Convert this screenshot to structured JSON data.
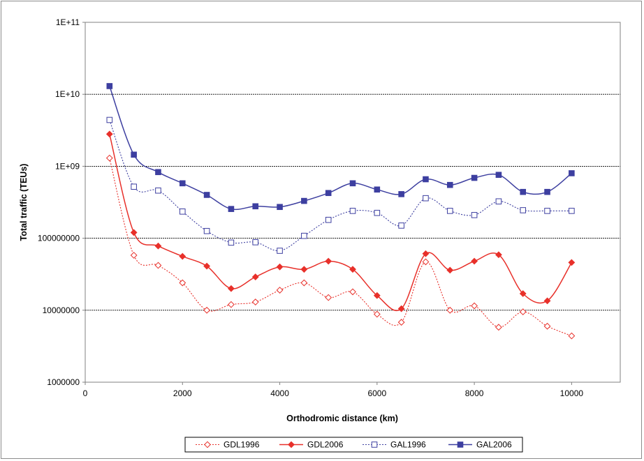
{
  "chart_data": {
    "type": "line",
    "xlabel": "Orthodromic distance (km)",
    "ylabel": "Total traffic (TEUs)",
    "xlim": [
      0,
      11000
    ],
    "ylim": [
      1000000,
      100000000000
    ],
    "y_scale": "log",
    "grid": "horizontal",
    "legend_position": "bottom",
    "x_ticks": [
      "0",
      "2000",
      "4000",
      "6000",
      "8000",
      "10000"
    ],
    "y_ticks": [
      "1000000",
      "10000000",
      "100000000",
      "1E+09",
      "1E+10",
      "1E+11"
    ],
    "x": [
      500,
      1000,
      1500,
      2000,
      2500,
      3000,
      3500,
      4000,
      4500,
      5000,
      5500,
      6000,
      6500,
      7000,
      7500,
      8000,
      8500,
      9000,
      9500,
      10000
    ],
    "series": [
      {
        "name": "GDL1996",
        "color": "#e8302a",
        "dashed": true,
        "marker": "diamond-open",
        "values": [
          1300000000,
          58000000,
          42000000,
          24000000,
          10000000,
          12000000,
          13000000,
          19000000,
          24000000,
          15000000,
          18000000,
          8800000,
          6800000,
          47000000,
          10000000,
          11500000,
          5800000,
          9500000,
          6000000,
          4400000
        ]
      },
      {
        "name": "GDL2006",
        "color": "#e8302a",
        "dashed": false,
        "marker": "diamond-filled",
        "values": [
          2800000000,
          120000000,
          78000000,
          56000000,
          41000000,
          20000000,
          29000000,
          40000000,
          37000000,
          48000000,
          37000000,
          16000000,
          10500000,
          61000000,
          36000000,
          48000000,
          59000000,
          17000000,
          13500000,
          46000000
        ]
      },
      {
        "name": "GAL1996",
        "color": "#3d3fa0",
        "dashed": true,
        "marker": "square-open",
        "values": [
          4400000000,
          520000000,
          460000000,
          235000000,
          126000000,
          87000000,
          88000000,
          67000000,
          108000000,
          180000000,
          240000000,
          225000000,
          150000000,
          360000000,
          240000000,
          210000000,
          325000000,
          245000000,
          240000000,
          240000000
        ]
      },
      {
        "name": "GAL2006",
        "color": "#3d3fa0",
        "dashed": false,
        "marker": "square-filled",
        "values": [
          13000000000,
          1450000000,
          830000000,
          580000000,
          400000000,
          255000000,
          278000000,
          272000000,
          330000000,
          425000000,
          580000000,
          475000000,
          410000000,
          660000000,
          550000000,
          690000000,
          760000000,
          440000000,
          440000000,
          800000000
        ]
      }
    ]
  }
}
